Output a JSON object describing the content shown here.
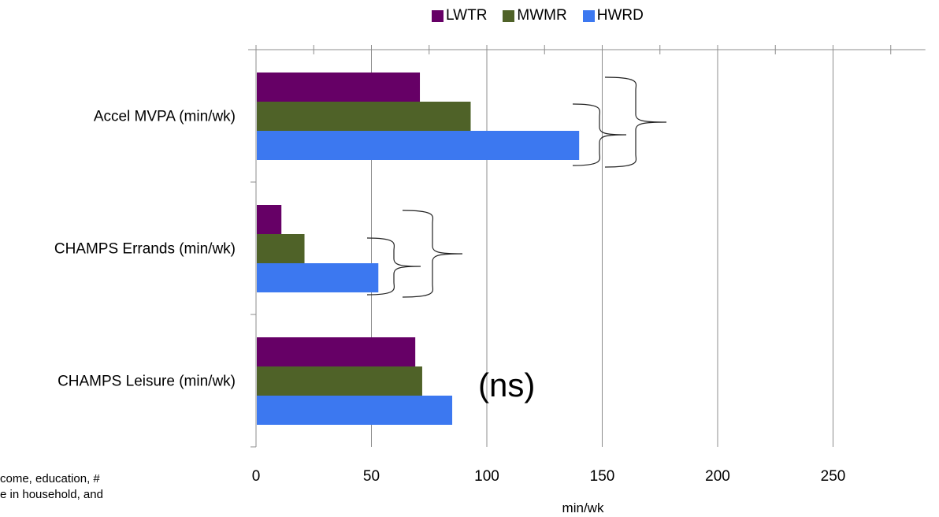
{
  "chart_data": {
    "type": "bar",
    "orientation": "horizontal",
    "categories": [
      "Accel MVPA (min/wk)",
      "CHAMPS Errands (min/wk)",
      "CHAMPS Leisure (min/wk)"
    ],
    "series": [
      {
        "name": "LWTR",
        "color": "#660066",
        "values": [
          71,
          11,
          69
        ]
      },
      {
        "name": "MWMR",
        "color": "#4f6228",
        "values": [
          93,
          21,
          72
        ]
      },
      {
        "name": "HWRD",
        "color": "#3c78f0",
        "values": [
          140,
          53,
          85
        ]
      }
    ],
    "xlabel": "min/wk",
    "xlim": [
      0,
      290
    ],
    "xticks": [
      "0",
      "50",
      "100",
      "150",
      "200",
      "250"
    ],
    "grid": true,
    "legend_position": "top"
  },
  "annotation": {
    "ns": "(ns)"
  },
  "footnote": {
    "line1": "come, education, #",
    "line2": "e in household, and"
  }
}
